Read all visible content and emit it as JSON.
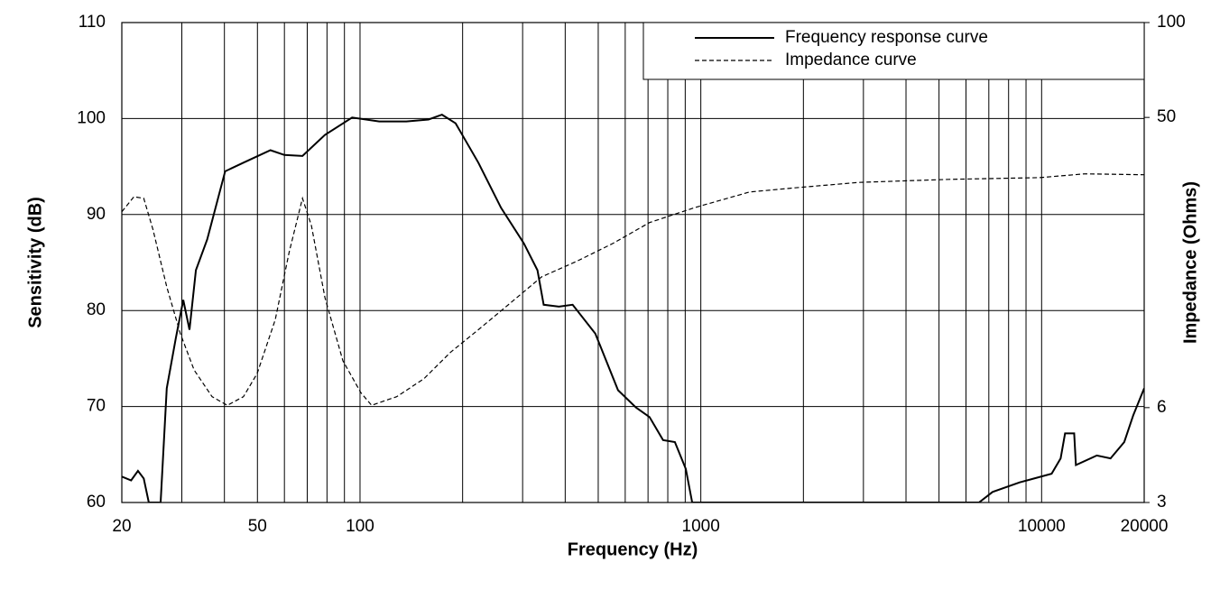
{
  "chart_data": {
    "type": "line",
    "x_label": "Frequency (Hz)",
    "y_label": "Sensitivity (dB)",
    "y2_label": "Impedance (Ohms)",
    "xscale": "log",
    "y2scale": "log",
    "xlim": [
      20,
      20000
    ],
    "xticks": [
      20,
      50,
      100,
      1000,
      10000,
      20000
    ],
    "ylim": [
      60,
      110
    ],
    "yticks": [
      60,
      70,
      80,
      90,
      100,
      110
    ],
    "y2lim": [
      3,
      100
    ],
    "y2ticks": [
      3,
      6,
      50,
      100
    ],
    "grid": true,
    "minor_x_grid": true,
    "legend": "upper right",
    "series": [
      {
        "name": "Frequency response curve",
        "color": "#000000",
        "style": "solid",
        "x": [
          20,
          21.3,
          22.3,
          23.2,
          24.0,
          26.0,
          27.1,
          28.8,
          30.3,
          31.6,
          33.0,
          35.6,
          40.2,
          45.5,
          54.6,
          60.0,
          67.8,
          78.9,
          94.8,
          113.8,
          136.7,
          158.9,
          174.0,
          190.8,
          222.4,
          259.4,
          302.5,
          331.7,
          345.8,
          383.5,
          420.6,
          490.2,
          571.5,
          645.5,
          707.0,
          774.6,
          839.0,
          903.7,
          943.6,
          6549,
          7180,
          8624,
          10698,
          11374,
          11720,
          12460,
          12610,
          14520,
          15930,
          17480,
          18580,
          20000
        ],
        "values": [
          62.7,
          62.3,
          63.3,
          62.5,
          60,
          60,
          71.9,
          77.1,
          81.1,
          78.0,
          84.2,
          87.4,
          94.5,
          95.4,
          96.7,
          96.2,
          96.1,
          98.3,
          100.1,
          99.7,
          99.7,
          99.9,
          100.4,
          99.5,
          95.4,
          90.7,
          87.0,
          84.2,
          80.6,
          80.4,
          80.6,
          77.6,
          71.7,
          69.9,
          68.9,
          66.5,
          66.3,
          63.5,
          60,
          60,
          61.1,
          62.1,
          63.0,
          64.6,
          67.2,
          67.2,
          63.9,
          64.9,
          64.6,
          66.3,
          69.1,
          71.9
        ]
      },
      {
        "name": "Impedance curve",
        "color": "#000000",
        "style": "dashed",
        "axis": "y2",
        "x": [
          20,
          21.7,
          23.2,
          24.7,
          27.1,
          29.7,
          32.6,
          36.8,
          40.8,
          45.5,
          49.9,
          56.4,
          61.9,
          67.8,
          72.0,
          78.9,
          89.1,
          100.5,
          108.1,
          128.1,
          153.8,
          184.6,
          222.4,
          267.0,
          341.0,
          433.7,
          551.7,
          707.0,
          962,
          1391,
          1890,
          2900,
          5370,
          9860,
          13380,
          20000
        ],
        "values": [
          25.1,
          28.0,
          27.7,
          22.0,
          14.5,
          10.3,
          7.9,
          6.5,
          6.1,
          6.5,
          7.7,
          11.4,
          18.6,
          27.7,
          22.7,
          13.4,
          8.45,
          6.7,
          6.1,
          6.5,
          7.4,
          9.0,
          10.6,
          12.5,
          15.6,
          17.5,
          19.9,
          23.2,
          25.9,
          29.0,
          29.9,
          31.1,
          31.8,
          32.2,
          33.1,
          32.9
        ]
      }
    ]
  }
}
